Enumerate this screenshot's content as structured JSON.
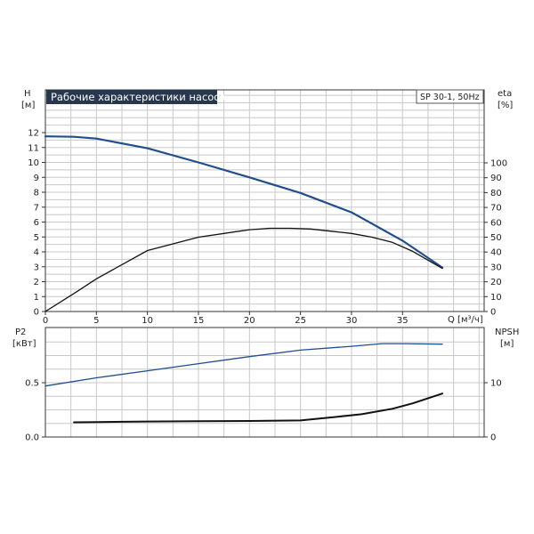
{
  "chart_data": [
    {
      "type": "line",
      "panel": "top",
      "title": "Рабочие характеристики насоса",
      "badge": "SP 30-1, 50Hz",
      "xlabel": "Q [м³/ч]",
      "ylabel_left": "H",
      "ylabel_left_unit": "[м]",
      "ylabel_right": "eta",
      "ylabel_right_unit": "[%]",
      "xlim": [
        0,
        43
      ],
      "ylim_left": [
        0,
        12
      ],
      "ylim_right": [
        0,
        100
      ],
      "x_ticks": [
        "0",
        "5",
        "10",
        "15",
        "20",
        "25",
        "30",
        "35"
      ],
      "y_left_ticks": [
        "0",
        "1",
        "2",
        "3",
        "4",
        "5",
        "6",
        "7",
        "8",
        "9",
        "10",
        "11",
        "12"
      ],
      "y_right_ticks": [
        "0",
        "10",
        "20",
        "30",
        "40",
        "50",
        "60",
        "70",
        "80",
        "90",
        "100"
      ],
      "grid": true,
      "series": [
        {
          "axis": "left",
          "color": "#1f4e8c",
          "x": [
            0,
            2.8,
            5,
            10,
            15,
            20,
            25,
            30,
            35,
            38.9
          ],
          "y": [
            11.75,
            11.72,
            11.6,
            10.95,
            10.0,
            9.0,
            7.95,
            6.65,
            4.75,
            2.95
          ]
        },
        {
          "axis": "right",
          "color": "#111111",
          "x": [
            0,
            3,
            5,
            10,
            15,
            20,
            22,
            24,
            26,
            28,
            30,
            32,
            34,
            36,
            38.9
          ],
          "y": [
            0,
            13,
            22,
            41,
            50,
            55,
            56,
            56,
            55.5,
            54,
            52.5,
            50,
            46.5,
            40.5,
            29
          ]
        }
      ]
    },
    {
      "type": "line",
      "panel": "bottom",
      "ylabel_left": "P2",
      "ylabel_left_unit": "[кВт]",
      "ylabel_right": "NPSH",
      "ylabel_right_unit": "[м]",
      "xlim": [
        0,
        43
      ],
      "ylim_left": [
        0,
        1.0
      ],
      "ylim_right": [
        0,
        20
      ],
      "y_left_ticks": [
        "0.0",
        "0.5"
      ],
      "y_right_ticks": [
        "0",
        "10"
      ],
      "grid": true,
      "series": [
        {
          "axis": "left",
          "color": "#1f4e8c",
          "x": [
            0,
            5,
            10,
            15,
            20,
            25,
            30,
            33,
            35,
            38.9
          ],
          "y": [
            0.47,
            0.545,
            0.61,
            0.675,
            0.74,
            0.8,
            0.835,
            0.86,
            0.86,
            0.855
          ]
        },
        {
          "axis": "right",
          "color": "#111111",
          "x": [
            2.8,
            5,
            10,
            15,
            20,
            25,
            28,
            31,
            34,
            36,
            38.9
          ],
          "y": [
            2.7,
            2.75,
            2.85,
            2.9,
            2.95,
            3.05,
            3.6,
            4.2,
            5.2,
            6.2,
            8.0
          ]
        }
      ]
    }
  ]
}
